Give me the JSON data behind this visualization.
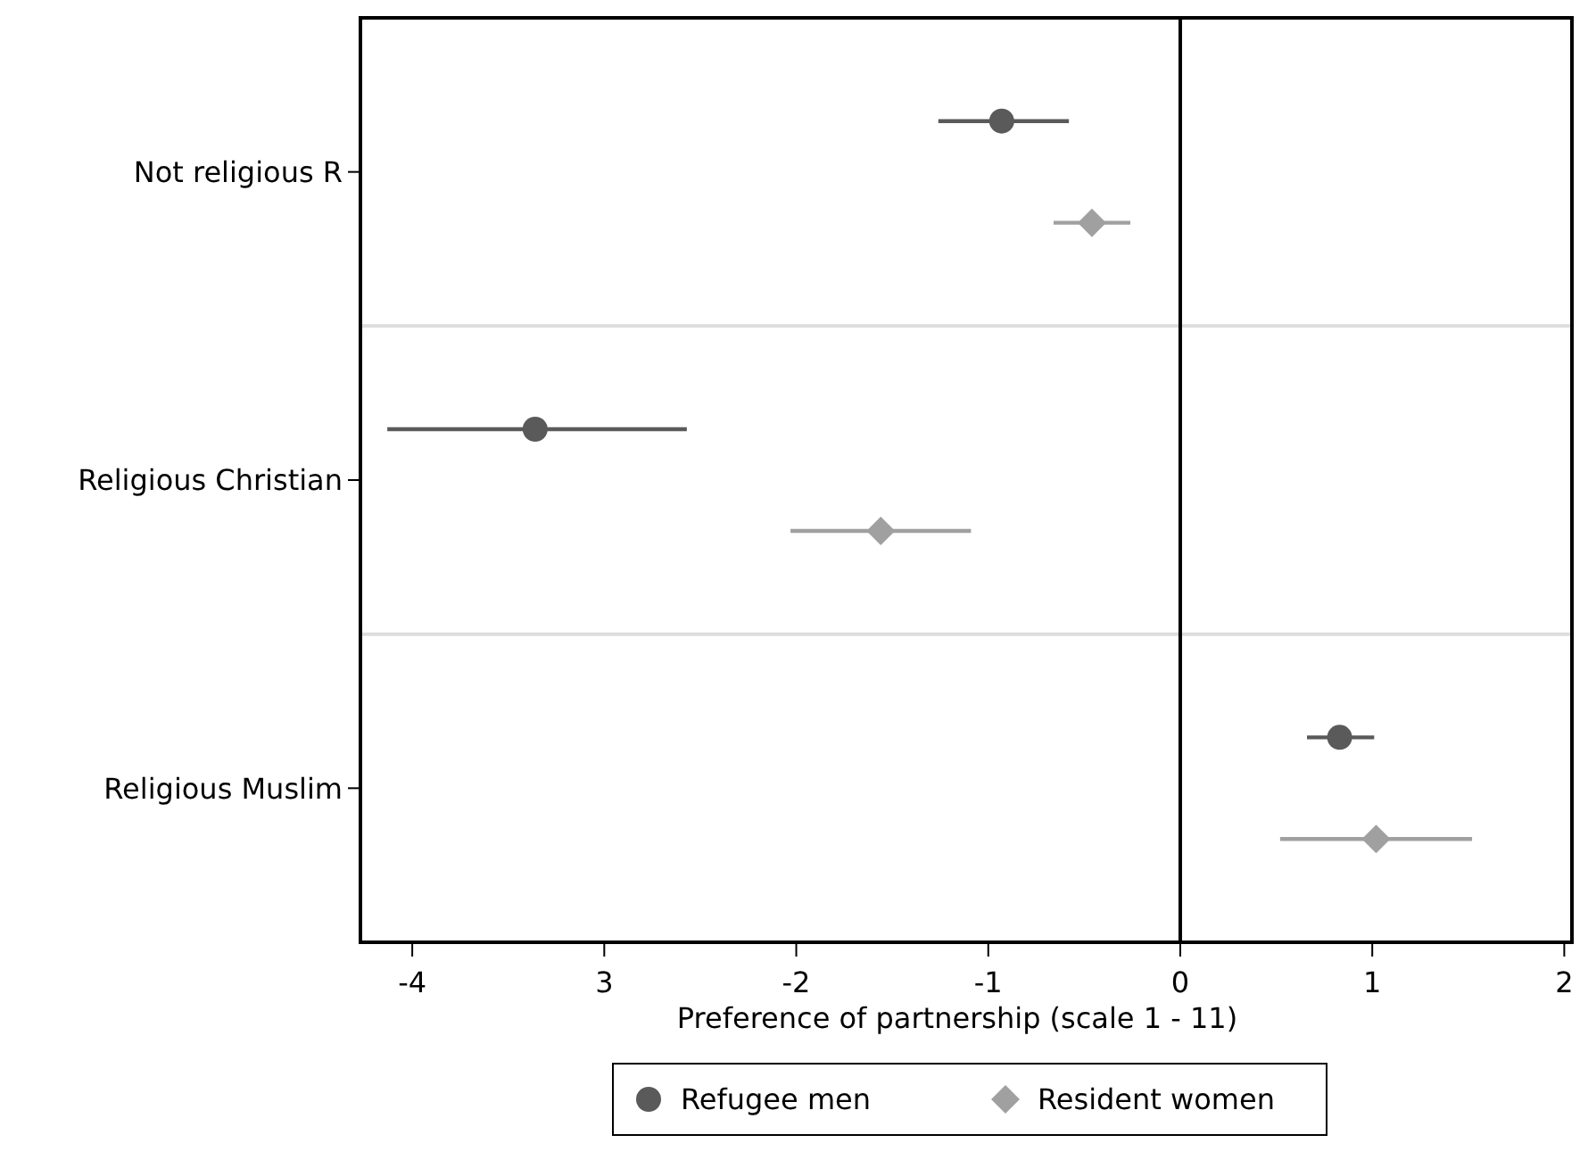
{
  "chart_data": {
    "type": "scatter",
    "orientation": "horizontal",
    "xlabel": "Preference of partnership (scale 1 - 11)",
    "categories": [
      "Not religious R",
      "Religious Christian",
      "Religious Muslim"
    ],
    "series": [
      {
        "name": "Refugee men",
        "color": "#5a5a5a",
        "marker": "circle",
        "values": [
          -0.93,
          -3.36,
          0.83
        ],
        "errors": [
          [
            -1.26,
            -0.58
          ],
          [
            -4.13,
            -2.57
          ],
          [
            0.66,
            1.01
          ]
        ]
      },
      {
        "name": "Resident women",
        "color": "#a0a0a0",
        "marker": "diamond",
        "values": [
          -0.46,
          -1.56,
          1.02
        ],
        "errors": [
          [
            -0.66,
            -0.26
          ],
          [
            -2.03,
            -1.09
          ],
          [
            0.52,
            1.52
          ]
        ]
      }
    ],
    "xlim": [
      -4.27,
      2.04
    ],
    "xticks": [
      -4,
      {
        "value": -3,
        "label": "3"
      },
      -2,
      -1,
      0,
      1,
      2
    ],
    "ref_lines": [
      {
        "axis": "x",
        "value": 0,
        "color": "#000000"
      }
    ],
    "grid": "y",
    "legend": "bottom"
  }
}
